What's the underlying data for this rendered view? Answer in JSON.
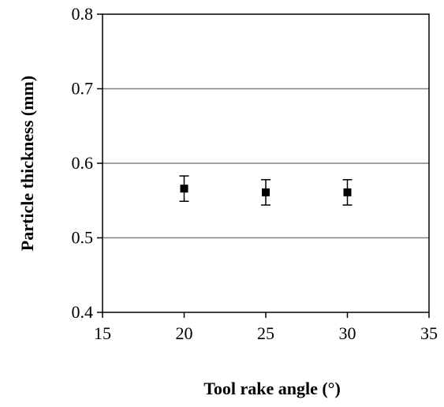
{
  "chart_data": {
    "type": "scatter",
    "title": "",
    "xlabel": "Tool rake angle (°)",
    "ylabel": "Particle  thickness (mm)",
    "xlim": [
      15,
      35
    ],
    "ylim": [
      0.4,
      0.8
    ],
    "xticks": [
      "15",
      "20",
      "25",
      "30",
      "35"
    ],
    "yticks": [
      "0.4",
      "0.5",
      "0.6",
      "0.7",
      "0.8"
    ],
    "grid": "horizontal",
    "legend": "none",
    "series": [
      {
        "marker": "square",
        "color": "#000000",
        "x": [
          20,
          25,
          30
        ],
        "y": [
          0.566,
          0.561,
          0.561
        ],
        "error": [
          0.017,
          0.017,
          0.017
        ]
      }
    ]
  }
}
